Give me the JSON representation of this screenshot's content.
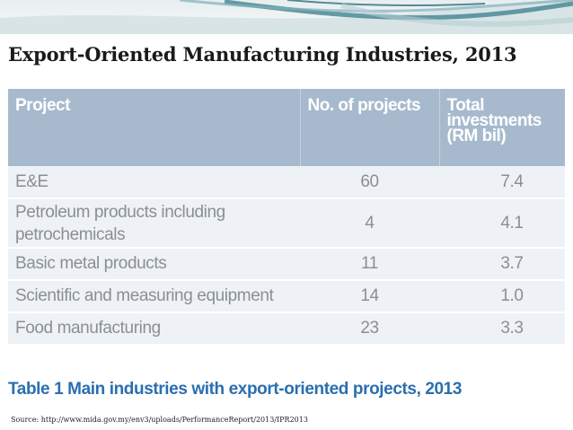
{
  "slide": {
    "title": "Export-Oriented Manufacturing Industries, 2013",
    "source": "Source: http://www.mida.gov.my/env3/uploads/PerformanceReport/2013/IPR2013"
  },
  "table": {
    "headers": {
      "project": "Project",
      "no_projects": "No. of projects",
      "total_line1": "Total",
      "total_line2": "investments",
      "total_line3": "(RM bil)"
    },
    "rows": [
      {
        "project": "E&E",
        "projects": "60",
        "investments": "7.4"
      },
      {
        "project_line1": "Petroleum products including",
        "project_line2": "petrochemicals",
        "projects": "4",
        "investments": "4.1"
      },
      {
        "project": "Basic metal products",
        "projects": "11",
        "investments": "3.7"
      },
      {
        "project": "Scientific and measuring equipment",
        "projects": "14",
        "investments": "1.0"
      },
      {
        "project": "Food manufacturing",
        "projects": "23",
        "investments": "3.3"
      }
    ],
    "caption": "Table 1 Main industries with export-oriented projects, 2013"
  },
  "colors": {
    "header_bg": "#a7bacd",
    "row_bg": "#eef2f6",
    "caption": "#2a6fb0",
    "banner_teal": "#4a8a96"
  }
}
